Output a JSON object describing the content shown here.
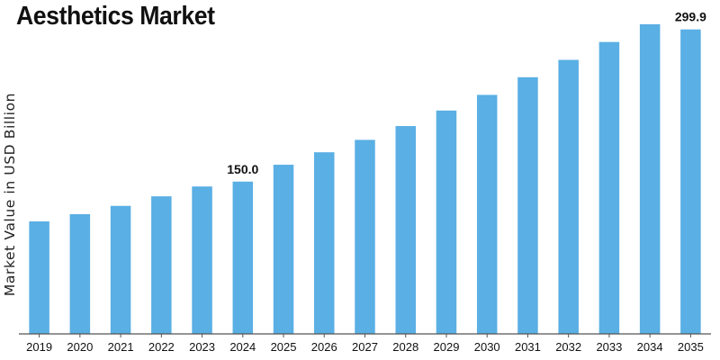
{
  "chart_data": {
    "type": "bar",
    "title": "Aesthetics Market",
    "xlabel": "",
    "ylabel": "Market Value in USD Billion",
    "categories": [
      "2019",
      "2020",
      "2021",
      "2022",
      "2023",
      "2024",
      "2025",
      "2026",
      "2027",
      "2028",
      "2029",
      "2030",
      "2031",
      "2032",
      "2033",
      "2034",
      "2035"
    ],
    "values": [
      110.8,
      117.9,
      126.1,
      135.5,
      145.2,
      150.0,
      166.6,
      178.9,
      191.1,
      204.7,
      220.0,
      235.4,
      252.8,
      269.9,
      287.5,
      305.0,
      299.9
    ],
    "data_labels": [
      {
        "category": "2024",
        "text": "150.0"
      },
      {
        "category": "2035",
        "text": "299.9"
      }
    ],
    "ylim": [
      0,
      320
    ],
    "bar_color": "#5aafe4",
    "grid": false,
    "legend": "none"
  }
}
